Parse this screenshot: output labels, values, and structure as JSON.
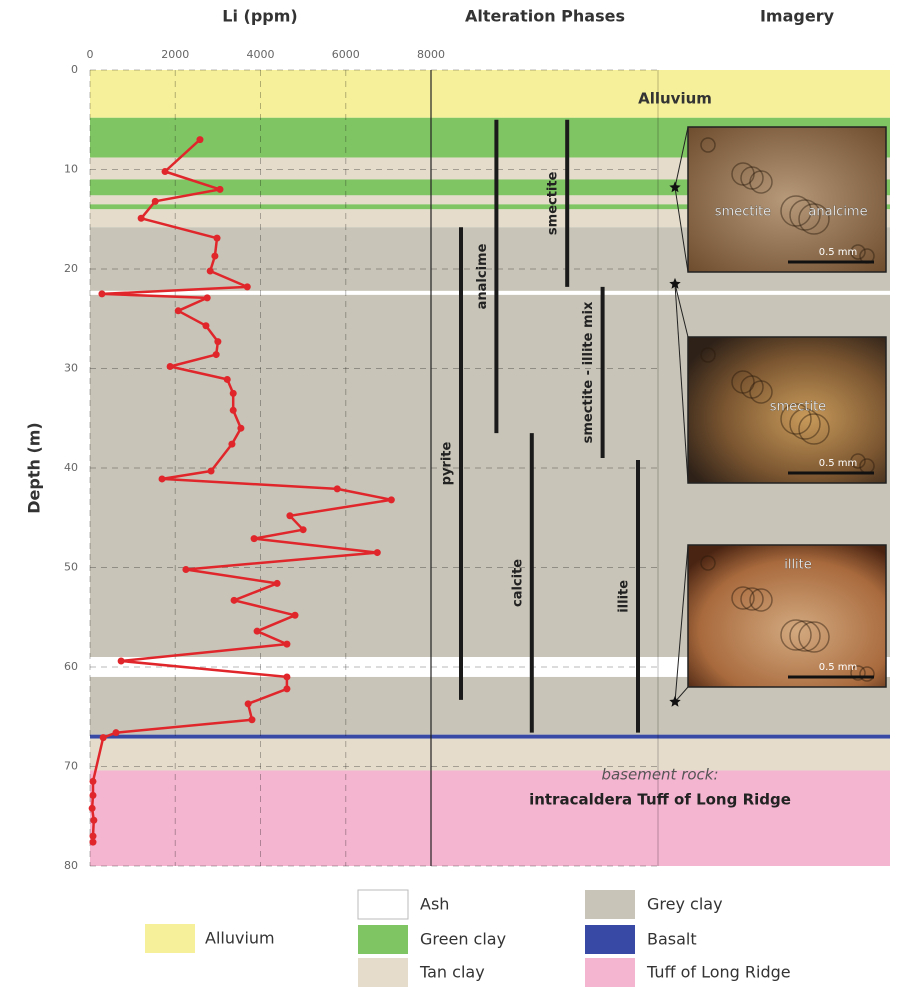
{
  "chart_data": {
    "type": "line",
    "panel_titles": [
      "Li (ppm)",
      "Alteration Phases",
      "Imagery"
    ],
    "y_label": "Depth (m)",
    "xlim": [
      0,
      8000
    ],
    "xticks": [
      0,
      2000,
      4000,
      6000,
      8000
    ],
    "ylim": [
      0,
      80
    ],
    "yticks": [
      0,
      10,
      20,
      30,
      40,
      50,
      60,
      70,
      80
    ],
    "y_inverted": true,
    "grid": true,
    "color": "#e0262b",
    "x": [
      2580,
      1760,
      3050,
      1530,
      1200,
      2980,
      2930,
      2820,
      3690,
      280,
      2750,
      2070,
      2720,
      3000,
      2960,
      1880,
      3220,
      3360,
      3360,
      3540,
      3330,
      2840,
      1690,
      5800,
      7070,
      4690,
      5000,
      3850,
      6740,
      2250,
      4390,
      3380,
      4810,
      3920,
      4620,
      730,
      4620,
      4620,
      3710,
      3800,
      610,
      310,
      70,
      70,
      50,
      90,
      70,
      70
    ],
    "y": [
      7.0,
      10.2,
      12.0,
      13.2,
      14.9,
      16.9,
      18.7,
      20.2,
      21.8,
      22.5,
      22.9,
      24.2,
      25.7,
      27.3,
      28.6,
      29.8,
      31.1,
      32.5,
      34.2,
      36.0,
      37.6,
      40.3,
      41.1,
      42.1,
      43.2,
      44.8,
      46.2,
      47.1,
      48.5,
      50.2,
      51.6,
      53.3,
      54.8,
      56.4,
      57.7,
      59.4,
      61.0,
      62.2,
      63.7,
      65.3,
      66.6,
      67.1,
      71.5,
      72.9,
      74.2,
      75.4,
      77.0,
      77.6
    ],
    "layers": [
      {
        "top": 0,
        "bottom": 4.8,
        "color": "#f6f09a"
      },
      {
        "top": 4.8,
        "bottom": 8.8,
        "color": "#80c564"
      },
      {
        "top": 8.8,
        "bottom": 11,
        "color": "#e5dccb"
      },
      {
        "top": 11,
        "bottom": 12.6,
        "color": "#80c564"
      },
      {
        "top": 12.6,
        "bottom": 13.5,
        "color": "#e5dccb"
      },
      {
        "top": 13.5,
        "bottom": 14,
        "color": "#80c564"
      },
      {
        "top": 14,
        "bottom": 15.8,
        "color": "#e5dccb"
      },
      {
        "top": 15.8,
        "bottom": 22.2,
        "color": "#c8c4b7"
      },
      {
        "top": 22.2,
        "bottom": 22.6,
        "color": "#ffffff"
      },
      {
        "top": 22.6,
        "bottom": 59,
        "color": "#c8c4b7"
      },
      {
        "top": 59,
        "bottom": 61,
        "color": "#ffffff"
      },
      {
        "top": 61,
        "bottom": 66.8,
        "color": "#c8c4b7"
      },
      {
        "top": 66.8,
        "bottom": 67.2,
        "color": "#3849a5"
      },
      {
        "top": 67.2,
        "bottom": 70.4,
        "color": "#e5dccb"
      },
      {
        "top": 70.4,
        "bottom": 80,
        "color": "#f4b5d0"
      }
    ],
    "phases": [
      {
        "label": "pyrite",
        "top": 15.8,
        "bottom": 63.3
      },
      {
        "label": "analcime",
        "top": 5,
        "bottom": 36.5
      },
      {
        "label": "calcite",
        "top": 36.5,
        "bottom": 66.6
      },
      {
        "label": "smectite",
        "top": 5,
        "bottom": 21.8
      },
      {
        "label": "smectite - illite mix",
        "top": 21.8,
        "bottom": 39
      },
      {
        "label": "illite",
        "top": 39.2,
        "bottom": 66.6
      }
    ],
    "images": [
      {
        "depth": 11.8,
        "labels": [
          "smectite",
          "analcime"
        ],
        "scale": "0.5 mm"
      },
      {
        "depth": 21.5,
        "labels": [
          "smectite"
        ],
        "scale": "0.5 mm"
      },
      {
        "depth": 63.5,
        "labels": [
          "illite"
        ],
        "scale": "0.5 mm"
      }
    ],
    "annotations": [
      "Alluvium",
      "basement rock:",
      "intracaldera Tuff of Long Ridge"
    ],
    "legend": [
      {
        "label": "Alluvium",
        "color": "#f6f09a"
      },
      {
        "label": "Ash",
        "color": "#ffffff"
      },
      {
        "label": "Green clay",
        "color": "#80c564"
      },
      {
        "label": "Tan clay",
        "color": "#e5dccb"
      },
      {
        "label": "Grey clay",
        "color": "#c8c4b7"
      },
      {
        "label": "Basalt",
        "color": "#3849a5"
      },
      {
        "label": "Tuff of Long Ridge",
        "color": "#f4b5d0"
      }
    ]
  }
}
